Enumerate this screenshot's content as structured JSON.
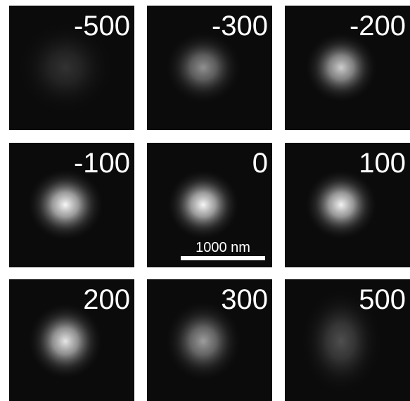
{
  "panels": [
    {
      "label": "-500"
    },
    {
      "label": "-300"
    },
    {
      "label": "-200"
    },
    {
      "label": "-100"
    },
    {
      "label": "0"
    },
    {
      "label": "100"
    },
    {
      "label": "200"
    },
    {
      "label": "300"
    },
    {
      "label": "500"
    }
  ],
  "scale_bar": {
    "label": "1000 nm"
  }
}
